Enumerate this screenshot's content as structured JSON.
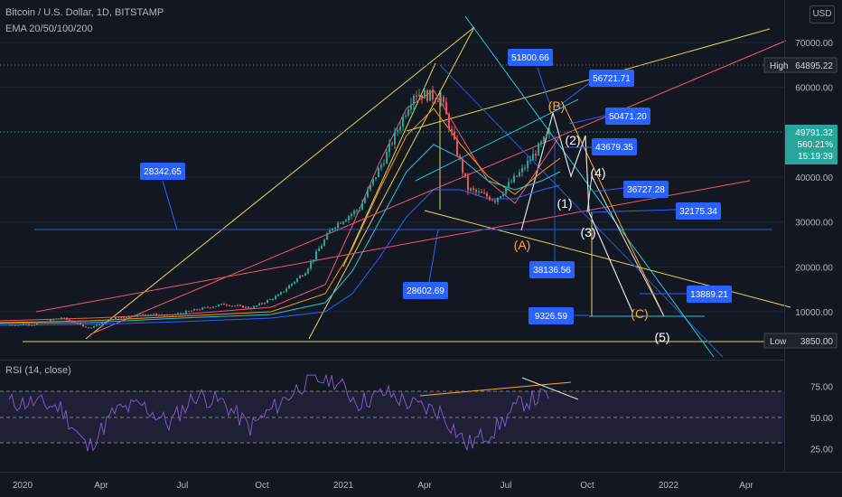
{
  "header": {
    "symbol": "Bitcoin / U.S. Dollar, 1D, BITSTAMP",
    "indicator": "EMA 20/50/100/200",
    "currency": "USD",
    "rsi_label": "RSI (14, close)"
  },
  "price_axis": {
    "ticks": [
      "70000.00",
      "60000.00",
      "50000.00",
      "40000.00",
      "30000.00",
      "20000.00",
      "10000.00"
    ],
    "tick_values": [
      70000,
      60000,
      50000,
      40000,
      30000,
      20000,
      10000
    ],
    "high_label": "High",
    "high_value": "64895.22",
    "low_label": "Low",
    "low_value": "3850.00",
    "last_price": "49791.32",
    "last_change": "560.21%",
    "countdown": "15:19:39"
  },
  "rsi_axis": {
    "ticks": [
      "75.00",
      "50.00",
      "25.00"
    ],
    "tick_values": [
      75,
      50,
      25
    ]
  },
  "time_axis": {
    "labels": [
      "2020",
      "Apr",
      "Jul",
      "Oct",
      "2021",
      "Apr",
      "Jul",
      "Oct",
      "2022",
      "Apr"
    ]
  },
  "annotations": {
    "price_boxes": [
      "28342.65",
      "51800.66",
      "56721.71",
      "50471.20",
      "43679.35",
      "36727.28",
      "32175.34",
      "38136.56",
      "28602.69",
      "9326.59",
      "13889.21"
    ],
    "wave_labels": [
      "(B)",
      "(A)",
      "(C)",
      "(1)",
      "(2)",
      "(3)",
      "(4)",
      "(5)"
    ]
  },
  "colors": {
    "background": "#131722",
    "candle_up": "#26a69a",
    "candle_down": "#ef5350",
    "box_fill": "#2962ff",
    "trend_yellow": "#e5d15a",
    "trend_red": "#f0566b",
    "trend_blue": "#2a58c8",
    "trend_teal": "#26c6da",
    "rsi_line": "#7e57c2",
    "last_price_badge": "#26a69a"
  },
  "chart_data": {
    "type": "candlestick",
    "title": "Bitcoin / U.S. Dollar, 1D, BITSTAMP",
    "xlabel": "",
    "ylabel": "",
    "ylim": [
      3850,
      75000
    ],
    "x": [
      "2020-01",
      "2020-02",
      "2020-03",
      "2020-04",
      "2020-05",
      "2020-06",
      "2020-07",
      "2020-08",
      "2020-09",
      "2020-10",
      "2020-11",
      "2020-12",
      "2021-01",
      "2021-02",
      "2021-03",
      "2021-04",
      "2021-05",
      "2021-06",
      "2021-07",
      "2021-08"
    ],
    "series": [
      {
        "name": "BTCUSD close",
        "values": [
          7200,
          8700,
          6400,
          8600,
          9500,
          9150,
          10500,
          11700,
          10800,
          13600,
          19000,
          28900,
          33100,
          45200,
          58800,
          57700,
          37300,
          35000,
          41500,
          49791
        ]
      }
    ],
    "high": 64895.22,
    "low": 3850.0,
    "last": 49791.32,
    "change_pct": "560.21%",
    "rsi": {
      "name": "RSI (14, close)",
      "x": [
        "2020-01",
        "2020-02",
        "2020-03",
        "2020-04",
        "2020-05",
        "2020-06",
        "2020-07",
        "2020-08",
        "2020-09",
        "2020-10",
        "2020-11",
        "2020-12",
        "2021-01",
        "2021-02",
        "2021-03",
        "2021-04",
        "2021-05",
        "2021-06",
        "2021-07",
        "2021-08"
      ],
      "values": [
        62,
        58,
        25,
        55,
        60,
        45,
        68,
        62,
        42,
        60,
        78,
        82,
        62,
        70,
        60,
        55,
        28,
        40,
        62,
        68
      ],
      "ylim": [
        15,
        85
      ]
    }
  }
}
